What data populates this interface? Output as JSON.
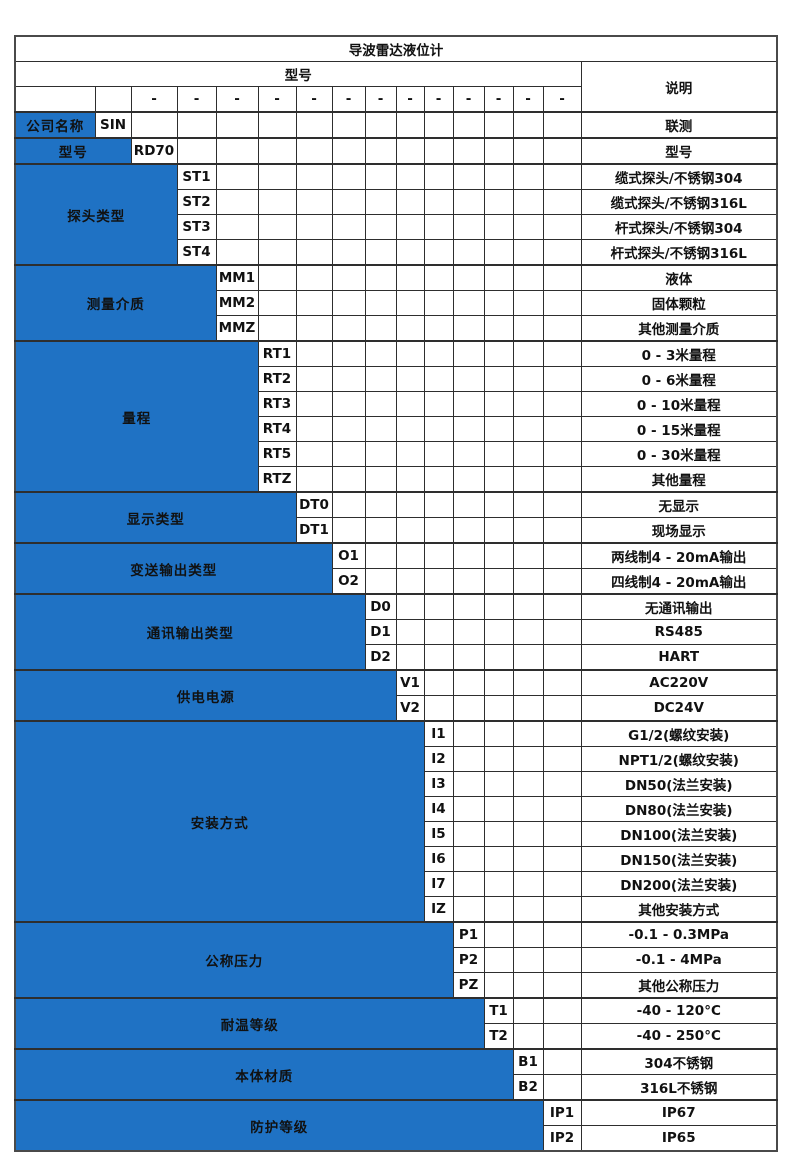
{
  "header": {
    "title": "导波雷达液位计",
    "model_label": "型号",
    "desc_label": "说明",
    "dash": "-"
  },
  "colors": {
    "accent_blue": "#1F72C4",
    "border_dark": "#2E2E2E",
    "text_light": "#FFFFFF",
    "text_dark": "#111111"
  },
  "sections": [
    {
      "key": "company-name",
      "label": "公司名称",
      "code_col": 1,
      "options": [
        {
          "code": "SIN",
          "desc": "联测"
        }
      ]
    },
    {
      "key": "model",
      "label": "型号",
      "code_col": 2,
      "options": [
        {
          "code": "RD70",
          "desc": "型号"
        }
      ]
    },
    {
      "key": "probe-type",
      "label": "探头类型",
      "code_col": 3,
      "options": [
        {
          "code": "ST1",
          "desc": "缆式探头/不锈钢304"
        },
        {
          "code": "ST2",
          "desc": "缆式探头/不锈钢316L"
        },
        {
          "code": "ST3",
          "desc": "杆式探头/不锈钢304"
        },
        {
          "code": "ST4",
          "desc": "杆式探头/不锈钢316L"
        }
      ]
    },
    {
      "key": "measuring-medium",
      "label": "测量介质",
      "code_col": 4,
      "options": [
        {
          "code": "MM1",
          "desc": "液体"
        },
        {
          "code": "MM2",
          "desc": "固体颗粒"
        },
        {
          "code": "MMZ",
          "desc": "其他测量介质"
        }
      ]
    },
    {
      "key": "range",
      "label": "量程",
      "code_col": 5,
      "options": [
        {
          "code": "RT1",
          "desc": "0 - 3米量程"
        },
        {
          "code": "RT2",
          "desc": "0 - 6米量程"
        },
        {
          "code": "RT3",
          "desc": "0 - 10米量程"
        },
        {
          "code": "RT4",
          "desc": "0 - 15米量程"
        },
        {
          "code": "RT5",
          "desc": "0 - 30米量程"
        },
        {
          "code": "RTZ",
          "desc": "其他量程"
        }
      ]
    },
    {
      "key": "display-type",
      "label": "显示类型",
      "code_col": 6,
      "options": [
        {
          "code": "DT0",
          "desc": "无显示"
        },
        {
          "code": "DT1",
          "desc": "现场显示"
        }
      ]
    },
    {
      "key": "transmitter-output-type",
      "label": "变送输出类型",
      "code_col": 7,
      "options": [
        {
          "code": "O1",
          "desc": "两线制4 - 20mA输出"
        },
        {
          "code": "O2",
          "desc": "四线制4 - 20mA输出"
        }
      ]
    },
    {
      "key": "communication-output-type",
      "label": "通讯输出类型",
      "code_col": 8,
      "options": [
        {
          "code": "D0",
          "desc": "无通讯输出"
        },
        {
          "code": "D1",
          "desc": "RS485"
        },
        {
          "code": "D2",
          "desc": "HART"
        }
      ]
    },
    {
      "key": "power-supply",
      "label": "供电电源",
      "code_col": 9,
      "options": [
        {
          "code": "V1",
          "desc": "AC220V"
        },
        {
          "code": "V2",
          "desc": "DC24V"
        }
      ]
    },
    {
      "key": "mounting-type",
      "label": "安装方式",
      "code_col": 10,
      "options": [
        {
          "code": "I1",
          "desc": "G1/2(螺纹安装)"
        },
        {
          "code": "I2",
          "desc": "NPT1/2(螺纹安装)"
        },
        {
          "code": "I3",
          "desc": "DN50(法兰安装)"
        },
        {
          "code": "I4",
          "desc": "DN80(法兰安装)"
        },
        {
          "code": "I5",
          "desc": "DN100(法兰安装)"
        },
        {
          "code": "I6",
          "desc": "DN150(法兰安装)"
        },
        {
          "code": "I7",
          "desc": "DN200(法兰安装)"
        },
        {
          "code": "IZ",
          "desc": "其他安装方式"
        }
      ]
    },
    {
      "key": "nominal-pressure",
      "label": "公称压力",
      "code_col": 11,
      "options": [
        {
          "code": "P1",
          "desc": "-0.1 - 0.3MPa"
        },
        {
          "code": "P2",
          "desc": "-0.1 - 4MPa"
        },
        {
          "code": "PZ",
          "desc": "其他公称压力"
        }
      ]
    },
    {
      "key": "temperature-rating",
      "label": "耐温等级",
      "code_col": 12,
      "options": [
        {
          "code": "T1",
          "desc": "-40 - 120°C"
        },
        {
          "code": "T2",
          "desc": "-40 - 250°C"
        }
      ]
    },
    {
      "key": "body-material",
      "label": "本体材质",
      "code_col": 13,
      "options": [
        {
          "code": "B1",
          "desc": "304不锈钢"
        },
        {
          "code": "B2",
          "desc": "316L不锈钢"
        }
      ]
    },
    {
      "key": "protection-rating",
      "label": "防护等级",
      "code_col": 14,
      "options": [
        {
          "code": "IP1",
          "desc": "IP67"
        },
        {
          "code": "IP2",
          "desc": "IP65"
        }
      ]
    }
  ]
}
